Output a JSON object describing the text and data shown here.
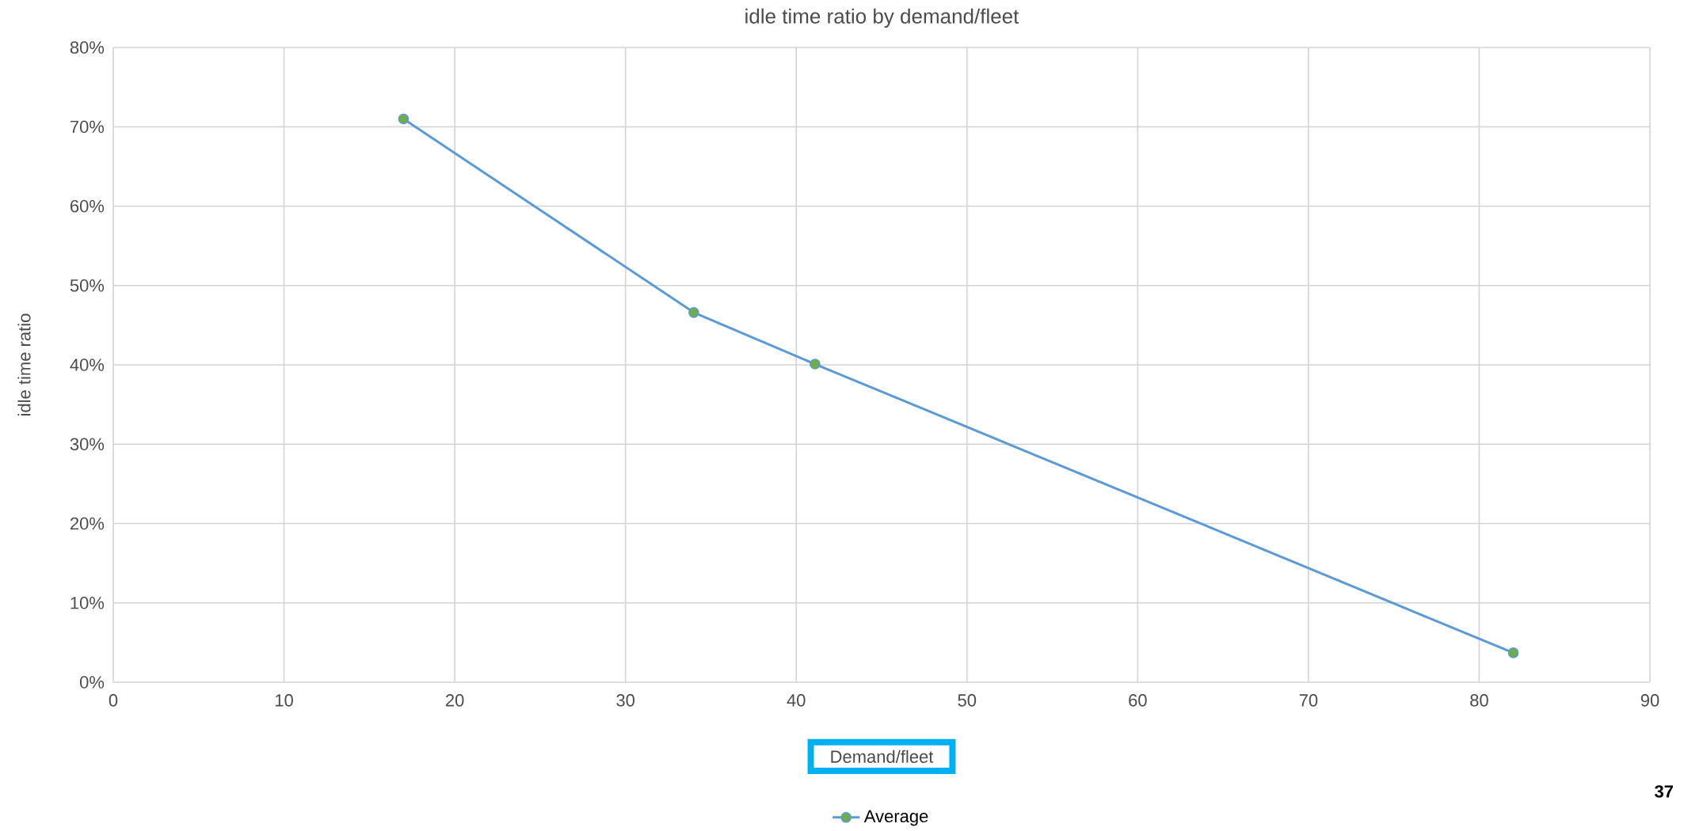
{
  "chart_data": {
    "type": "line",
    "title": "idle time ratio by demand/fleet",
    "xlabel": "Demand/fleet",
    "ylabel": "idle time ratio",
    "x": [
      17,
      34,
      41.1,
      82
    ],
    "series": [
      {
        "name": "Average",
        "color": "#5b9bd5",
        "values": [
          71,
          46.6,
          40.1,
          3.7
        ]
      }
    ],
    "xlim": [
      0,
      90
    ],
    "xticks": [
      0,
      10,
      20,
      30,
      40,
      50,
      60,
      70,
      80,
      90
    ],
    "ylim": [
      0,
      80
    ],
    "yticks": [
      {
        "value": 0,
        "label": "0%"
      },
      {
        "value": 10,
        "label": "10%"
      },
      {
        "value": 20,
        "label": "20%"
      },
      {
        "value": 30,
        "label": "30%"
      },
      {
        "value": 40,
        "label": "40%"
      },
      {
        "value": 50,
        "label": "50%"
      },
      {
        "value": 60,
        "label": "60%"
      },
      {
        "value": 70,
        "label": "70%"
      },
      {
        "value": 80,
        "label": "80%"
      }
    ],
    "grid": true,
    "legend": "bottom",
    "marker": "circle",
    "annotations": [
      "37"
    ]
  }
}
